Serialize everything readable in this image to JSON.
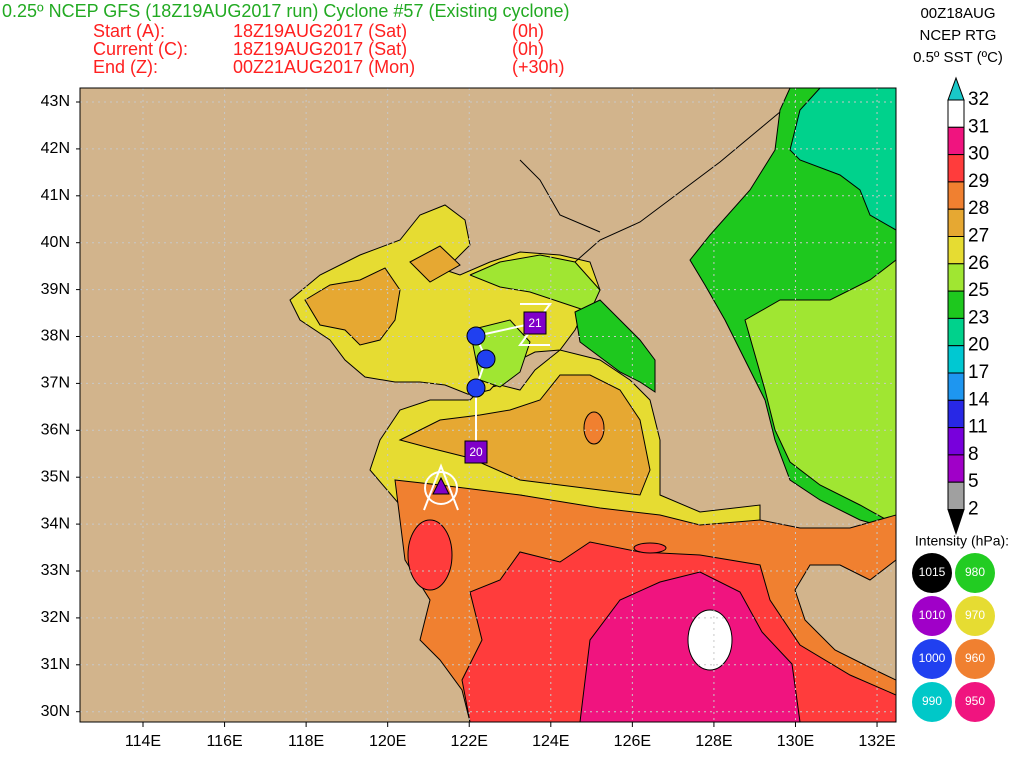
{
  "header": {
    "title": "0.25º NCEP GFS (18Z19AUG2017 run) Cyclone #57 (Existing cyclone)",
    "rows": [
      {
        "label": "Start (A):",
        "time": "18Z19AUG2017 (Sat)",
        "offset": "(0h)"
      },
      {
        "label": "Current (C):",
        "time": "18Z19AUG2017 (Sat)",
        "offset": "(0h)"
      },
      {
        "label": "End (Z):",
        "time": "00Z21AUG2017 (Mon)",
        "offset": "(+30h)"
      }
    ]
  },
  "info": [
    "00Z18AUG",
    "NCEP RTG",
    "0.5º SST (ºC)"
  ],
  "colorbar": {
    "labels": [
      "32",
      "31",
      "30",
      "29",
      "28",
      "27",
      "26",
      "25",
      "23",
      "20",
      "17",
      "14",
      "11",
      "8",
      "5",
      "2"
    ],
    "colors": [
      "#19c8c8",
      "#ffffff",
      "#f0147f",
      "#ff3c3c",
      "#f08030",
      "#e6a832",
      "#e6dc32",
      "#a0e632",
      "#1ec81e",
      "#00d28c",
      "#00c8d2",
      "#1e96f0",
      "#2828e6",
      "#7800dc",
      "#a000c8",
      "#a0a0a0",
      "#000000"
    ]
  },
  "intensity": {
    "title": "Intensity (hPa):",
    "items": [
      {
        "label": "1015",
        "color": "#000000"
      },
      {
        "label": "980",
        "color": "#22cc22"
      },
      {
        "label": "1010",
        "color": "#a000c8"
      },
      {
        "label": "970",
        "color": "#e6dc32"
      },
      {
        "label": "1000",
        "color": "#2040f0"
      },
      {
        "label": "960",
        "color": "#f08030"
      },
      {
        "label": "990",
        "color": "#00c8c8"
      },
      {
        "label": "950",
        "color": "#f0147f"
      }
    ]
  },
  "axes": {
    "lat_labels": [
      "43N",
      "42N",
      "41N",
      "40N",
      "39N",
      "38N",
      "37N",
      "36N",
      "35N",
      "34N",
      "33N",
      "32N",
      "31N",
      "30N"
    ],
    "lon_labels": [
      "114E",
      "116E",
      "118E",
      "120E",
      "122E",
      "124E",
      "126E",
      "128E",
      "130E",
      "132E"
    ]
  },
  "track": {
    "labels": [
      "20",
      "21"
    ]
  }
}
